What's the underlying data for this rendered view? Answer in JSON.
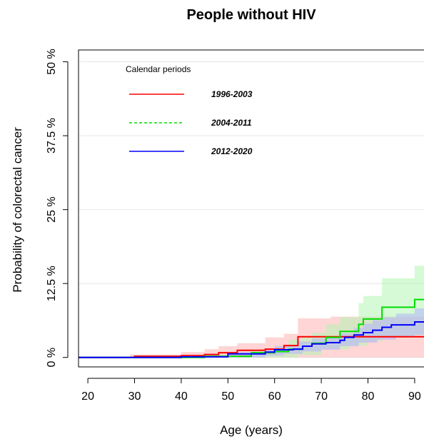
{
  "chart_data": {
    "type": "line",
    "title": "People without HIV",
    "xlabel": "Age (years)",
    "ylabel": "Probability of colorectal cancer",
    "xlim": [
      18,
      92
    ],
    "ylim": [
      -1.6,
      52
    ],
    "x_ticks": [
      20,
      30,
      40,
      50,
      60,
      70,
      80,
      90
    ],
    "y_ticks": [
      0,
      12.5,
      25,
      37.5,
      50
    ],
    "y_tick_labels": [
      "0 %",
      "12.5 %",
      "25 %",
      "37.5 %",
      "50 %"
    ],
    "grid": true,
    "legend": {
      "title": "Calendar periods",
      "position": "top-left"
    },
    "series": [
      {
        "name": "1996-2003",
        "color": "#ff0000",
        "band_color": "#ffb3b3",
        "line_style": "solid",
        "steps": [
          [
            18,
            0
          ],
          [
            30,
            0.2
          ],
          [
            40,
            0.3
          ],
          [
            45,
            0.5
          ],
          [
            48,
            0.8
          ],
          [
            52,
            1.2
          ],
          [
            58,
            1.4
          ],
          [
            62,
            2.0
          ],
          [
            65,
            3.5
          ],
          [
            92,
            3.5
          ]
        ],
        "ci_lower": [
          [
            18,
            0
          ],
          [
            29,
            0
          ],
          [
            92,
            0
          ]
        ],
        "ci_upper": [
          [
            18,
            0
          ],
          [
            29,
            0.5
          ],
          [
            40,
            0.9
          ],
          [
            45,
            1.4
          ],
          [
            48,
            1.9
          ],
          [
            52,
            2.4
          ],
          [
            58,
            3.4
          ],
          [
            62,
            4.0
          ],
          [
            65,
            6.6
          ],
          [
            72,
            6.9
          ],
          [
            78,
            6.9
          ],
          [
            92,
            6.9
          ]
        ]
      },
      {
        "name": "2004-2011",
        "color": "#00dd00",
        "band_color": "#b3f5b3",
        "line_style": "dashed",
        "steps": [
          [
            18,
            0
          ],
          [
            45,
            0.2
          ],
          [
            55,
            0.8
          ],
          [
            60,
            1.0
          ],
          [
            63,
            1.4
          ],
          [
            66,
            1.9
          ],
          [
            68,
            2.4
          ],
          [
            71,
            3.4
          ],
          [
            74,
            4.4
          ],
          [
            78,
            5.6
          ],
          [
            79,
            6.5
          ],
          [
            83,
            8.5
          ],
          [
            90,
            9.8
          ],
          [
            92,
            9.8
          ]
        ],
        "ci_lower": [
          [
            18,
            0
          ],
          [
            60,
            0
          ],
          [
            65,
            0.4
          ],
          [
            70,
            1.4
          ],
          [
            76,
            2.0
          ],
          [
            80,
            2.7
          ],
          [
            83,
            3.3
          ],
          [
            90,
            3.8
          ],
          [
            92,
            3.8
          ]
        ],
        "ci_upper": [
          [
            18,
            0
          ],
          [
            45,
            0.3
          ],
          [
            55,
            1.2
          ],
          [
            60,
            1.8
          ],
          [
            63,
            3.0
          ],
          [
            66,
            3.6
          ],
          [
            68,
            4.2
          ],
          [
            71,
            5.6
          ],
          [
            74,
            6.8
          ],
          [
            78,
            9.2
          ],
          [
            79,
            10.4
          ],
          [
            83,
            13.4
          ],
          [
            90,
            15.5
          ],
          [
            92,
            15.5
          ]
        ]
      },
      {
        "name": "2012-2020",
        "color": "#0000ff",
        "band_color": "#b3b3ff",
        "line_style": "solid",
        "steps": [
          [
            18,
            0
          ],
          [
            40,
            0.1
          ],
          [
            50,
            0.6
          ],
          [
            58,
            0.9
          ],
          [
            60,
            1.3
          ],
          [
            64,
            1.4
          ],
          [
            66,
            1.9
          ],
          [
            68,
            2.3
          ],
          [
            71,
            2.5
          ],
          [
            74,
            2.9
          ],
          [
            75,
            3.4
          ],
          [
            77,
            3.8
          ],
          [
            79,
            4.2
          ],
          [
            81,
            4.6
          ],
          [
            83,
            5.1
          ],
          [
            85,
            5.5
          ],
          [
            90,
            6.0
          ],
          [
            92,
            6.0
          ]
        ],
        "ci_lower": [
          [
            18,
            0
          ],
          [
            58,
            0.3
          ],
          [
            62,
            0.6
          ],
          [
            66,
            1.0
          ],
          [
            70,
            1.3
          ],
          [
            74,
            1.9
          ],
          [
            78,
            2.5
          ],
          [
            82,
            3.0
          ],
          [
            86,
            3.4
          ],
          [
            90,
            3.8
          ],
          [
            92,
            3.8
          ]
        ],
        "ci_upper": [
          [
            18,
            0
          ],
          [
            40,
            0.2
          ],
          [
            50,
            0.9
          ],
          [
            58,
            1.4
          ],
          [
            60,
            1.9
          ],
          [
            62,
            2.1
          ],
          [
            65,
            2.7
          ],
          [
            68,
            3.2
          ],
          [
            71,
            3.5
          ],
          [
            74,
            4.1
          ],
          [
            77,
            5.0
          ],
          [
            79,
            5.7
          ],
          [
            81,
            6.3
          ],
          [
            83,
            6.8
          ],
          [
            86,
            7.4
          ],
          [
            90,
            8.3
          ],
          [
            92,
            8.3
          ]
        ]
      }
    ]
  }
}
